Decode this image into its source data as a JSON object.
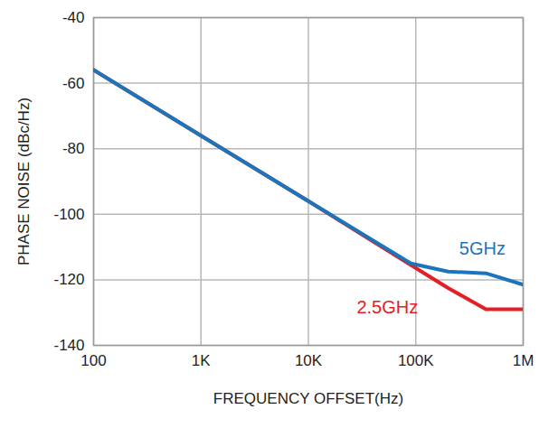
{
  "chart_data": {
    "type": "line",
    "x_label": "FREQUENCY OFFSET(Hz)",
    "y_label": "PHASE NOISE (dBc/Hz)",
    "log": "x",
    "grid": true,
    "xlim": [
      100,
      1000000
    ],
    "ylim": [
      -140,
      -40
    ],
    "xticks": [
      100,
      {
        "value": 1000,
        "label": "1K"
      },
      {
        "value": 10000,
        "label": "10K"
      },
      {
        "value": 100000,
        "label": "100K"
      },
      {
        "value": 1000000,
        "label": "1M"
      }
    ],
    "yticks": [
      -40,
      -60,
      -80,
      -100,
      -120,
      -140
    ],
    "x": [
      100,
      1000,
      10000,
      90000,
      200000,
      450000,
      1000000
    ],
    "series": [
      {
        "name": "2.5GHz",
        "color": "#e31e24",
        "values": [
          -56,
          -76,
          -96,
          -115.5,
          -122.5,
          -129,
          -129
        ]
      },
      {
        "name": "5GHz",
        "color": "#1b75bc",
        "values": [
          -56,
          -76,
          -96,
          -115,
          -117.5,
          -118,
          -121.5
        ]
      }
    ]
  }
}
